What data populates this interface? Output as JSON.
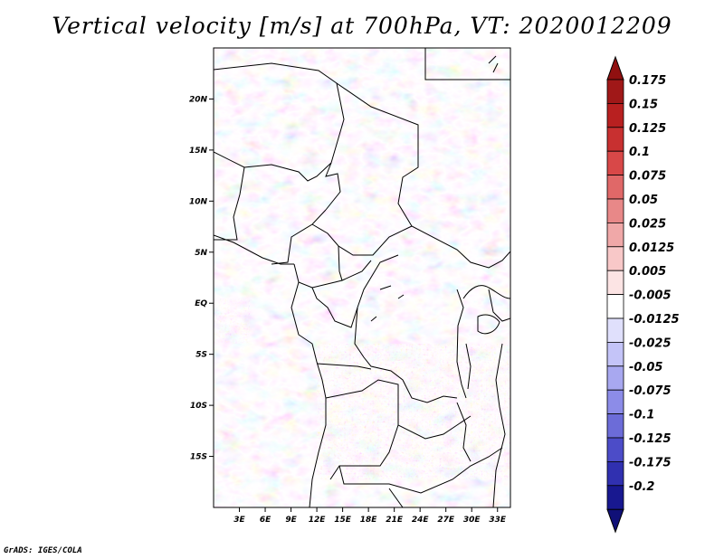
{
  "title": "Vertical velocity [m/s] at 700hPa, VT: 2020012209",
  "footer": "GrADS: IGES/COLA",
  "map": {
    "lon_range": [
      0,
      34.5
    ],
    "lat_range": [
      -20,
      25
    ],
    "lat_ticks": [
      {
        "value": 20,
        "label": "20N"
      },
      {
        "value": 15,
        "label": "15N"
      },
      {
        "value": 10,
        "label": "10N"
      },
      {
        "value": 5,
        "label": "5N"
      },
      {
        "value": 0,
        "label": "EQ"
      },
      {
        "value": -5,
        "label": "5S"
      },
      {
        "value": -10,
        "label": "10S"
      },
      {
        "value": -15,
        "label": "15S"
      }
    ],
    "lon_ticks": [
      {
        "value": 3,
        "label": "3E"
      },
      {
        "value": 6,
        "label": "6E"
      },
      {
        "value": 9,
        "label": "9E"
      },
      {
        "value": 12,
        "label": "12E"
      },
      {
        "value": 15,
        "label": "15E"
      },
      {
        "value": 18,
        "label": "18E"
      },
      {
        "value": 21,
        "label": "21E"
      },
      {
        "value": 24,
        "label": "24E"
      },
      {
        "value": 27,
        "label": "27E"
      },
      {
        "value": 30,
        "label": "30E"
      },
      {
        "value": 33,
        "label": "33E"
      }
    ]
  },
  "colorbar": {
    "levels": [
      {
        "label": "0.175",
        "color": "#a01818"
      },
      {
        "label": "0.15",
        "color": "#b82020"
      },
      {
        "label": "0.125",
        "color": "#c83030"
      },
      {
        "label": "0.1",
        "color": "#d84848"
      },
      {
        "label": "0.075",
        "color": "#e06868"
      },
      {
        "label": "0.05",
        "color": "#e88888"
      },
      {
        "label": "0.025",
        "color": "#f0a8a8"
      },
      {
        "label": "0.0125",
        "color": "#f8c8c8"
      },
      {
        "label": "0.005",
        "color": "#fce4e4"
      },
      {
        "label": "-0.005",
        "color": "#ffffff"
      },
      {
        "label": "-0.0125",
        "color": "#e0e0fc"
      },
      {
        "label": "-0.025",
        "color": "#c4c4f8"
      },
      {
        "label": "-0.05",
        "color": "#a8a8f0"
      },
      {
        "label": "-0.075",
        "color": "#8c8ce8"
      },
      {
        "label": "-0.1",
        "color": "#6c6cd8"
      },
      {
        "label": "-0.125",
        "color": "#4c4cc8"
      },
      {
        "label": "-0.175",
        "color": "#3030b0"
      },
      {
        "label": "-0.2",
        "color": "#181890"
      }
    ],
    "top_arrow_color": "#901010",
    "bottom_arrow_color": "#101078"
  }
}
